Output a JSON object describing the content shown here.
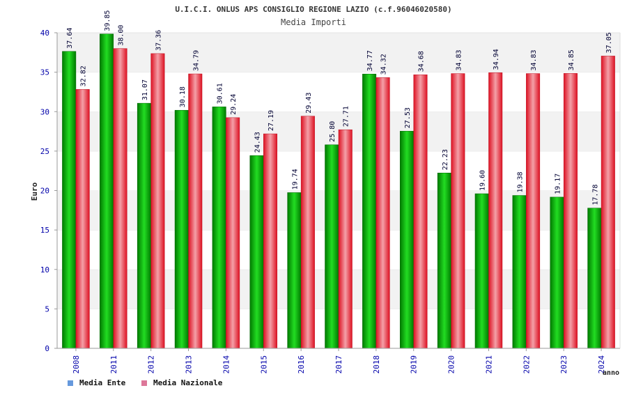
{
  "chart_data": {
    "type": "bar",
    "title": "U.I.C.I. ONLUS APS CONSIGLIO REGIONE LAZIO (c.f.96046020580)",
    "subtitle": "Media Importi",
    "ylabel": "Euro",
    "xlabel": "anno",
    "ylim": [
      0,
      40
    ],
    "yticks": [
      "0",
      "5",
      "10",
      "15",
      "20",
      "25",
      "30",
      "35",
      "40"
    ],
    "grid": true,
    "legend_position": "bottom-left",
    "categories": [
      "2008",
      "2011",
      "2012",
      "2013",
      "2014",
      "2015",
      "2016",
      "2017",
      "2018",
      "2019",
      "2020",
      "2021",
      "2022",
      "2023",
      "2024"
    ],
    "series": [
      {
        "name": "Media Ente",
        "color": "#00bb00",
        "legend_color": "#6699dd",
        "values": [
          37.64,
          39.85,
          31.07,
          30.18,
          30.61,
          24.43,
          19.74,
          25.8,
          34.77,
          27.53,
          22.23,
          19.6,
          19.38,
          19.17,
          17.78
        ],
        "labels": [
          "37.64",
          "39.85",
          "31.07",
          "30.18",
          "30.61",
          "24.43",
          "19.74",
          "25.80",
          "34.77",
          "27.53",
          "22.23",
          "19.60",
          "19.38",
          "19.17",
          "17.78"
        ]
      },
      {
        "name": "Media Nazionale",
        "color": "#ee2233",
        "legend_color": "#dd7799",
        "values": [
          32.82,
          38.0,
          37.36,
          34.79,
          29.24,
          27.19,
          29.43,
          27.71,
          34.32,
          34.68,
          34.83,
          34.94,
          34.83,
          34.85,
          37.05
        ],
        "labels": [
          "32.82",
          "38.00",
          "37.36",
          "34.79",
          "29.24",
          "27.19",
          "29.43",
          "27.71",
          "34.32",
          "34.68",
          "34.83",
          "34.94",
          "34.83",
          "34.85",
          "37.05"
        ]
      }
    ]
  }
}
